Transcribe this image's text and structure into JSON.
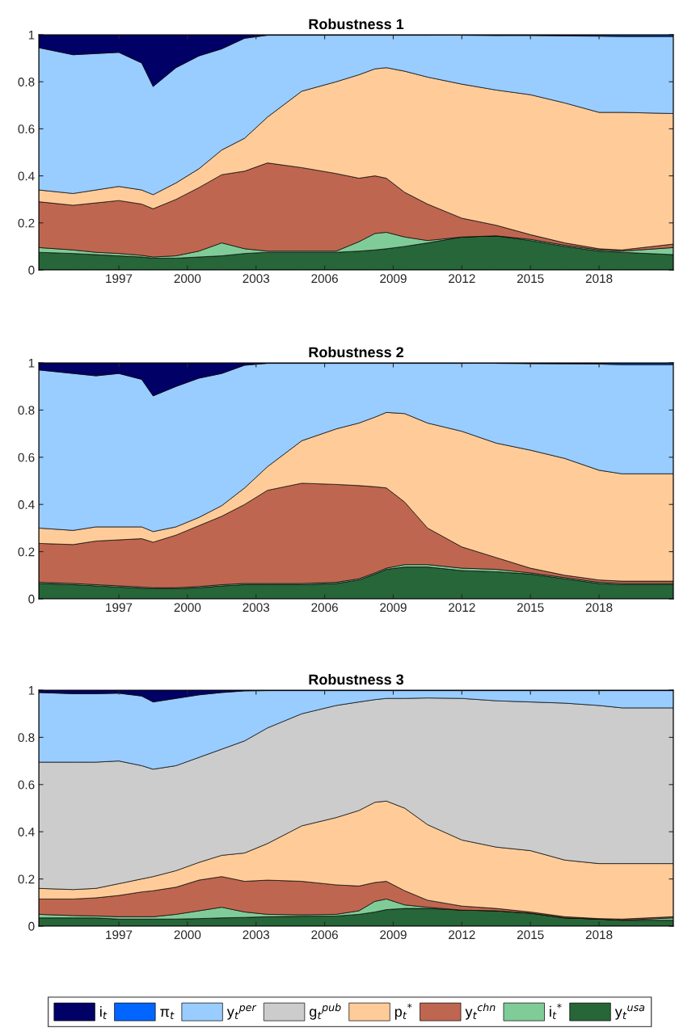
{
  "chart_data": [
    {
      "type": "area",
      "stacked": true,
      "title": "Robustness 1",
      "legend": false,
      "grid": false,
      "x": [
        1993.5,
        1995,
        1996,
        1997,
        1998,
        1998.5,
        1999.5,
        2000.5,
        2001.5,
        2002.5,
        2003.5,
        2005,
        2006.5,
        2007.5,
        2008.2,
        2008.7,
        2009.5,
        2010.5,
        2012,
        2013.5,
        2015,
        2016.5,
        2018,
        2019,
        2021.25
      ],
      "xlim": [
        1993.5,
        2021.25
      ],
      "xticks": [
        1997,
        2000,
        2003,
        2006,
        2009,
        2012,
        2015,
        2018
      ],
      "ylim": [
        0,
        1
      ],
      "yticks": [
        0,
        0.2,
        0.4,
        0.6,
        0.8,
        1
      ],
      "series": [
        {
          "color": "#266638",
          "values": [
            0.075,
            0.07,
            0.065,
            0.06,
            0.055,
            0.05,
            0.05,
            0.055,
            0.06,
            0.07,
            0.075,
            0.075,
            0.075,
            0.08,
            0.085,
            0.09,
            0.1,
            0.115,
            0.14,
            0.145,
            0.125,
            0.1,
            0.08,
            0.075,
            0.065
          ]
        },
        {
          "color": "#80cc99",
          "values": [
            0.02,
            0.015,
            0.01,
            0.01,
            0.007,
            0.005,
            0.01,
            0.025,
            0.055,
            0.02,
            0.005,
            0.005,
            0.005,
            0.04,
            0.07,
            0.07,
            0.04,
            0.01,
            0,
            0,
            0.005,
            0.005,
            0.005,
            0.005,
            0.03
          ]
        },
        {
          "color": "#bf6650",
          "values": [
            0.195,
            0.19,
            0.21,
            0.225,
            0.218,
            0.205,
            0.24,
            0.27,
            0.29,
            0.33,
            0.375,
            0.355,
            0.33,
            0.27,
            0.245,
            0.23,
            0.19,
            0.155,
            0.08,
            0.045,
            0.02,
            0.01,
            0.005,
            0.005,
            0.015
          ]
        },
        {
          "color": "#ffcc99",
          "values": [
            0.05,
            0.05,
            0.055,
            0.06,
            0.06,
            0.06,
            0.07,
            0.08,
            0.105,
            0.14,
            0.195,
            0.325,
            0.39,
            0.44,
            0.455,
            0.47,
            0.515,
            0.54,
            0.57,
            0.575,
            0.595,
            0.595,
            0.58,
            0.585,
            0.555
          ]
        },
        {
          "color": "#99ccff",
          "values": [
            0.605,
            0.59,
            0.58,
            0.57,
            0.54,
            0.46,
            0.49,
            0.48,
            0.43,
            0.425,
            0.348,
            0.238,
            0.198,
            0.168,
            0.143,
            0.138,
            0.153,
            0.178,
            0.208,
            0.232,
            0.252,
            0.285,
            0.324,
            0.322,
            0.327
          ]
        },
        {
          "color": "#0066ff",
          "values": [
            null,
            null,
            null,
            null,
            null,
            null,
            null,
            null,
            null,
            null,
            null,
            null,
            null,
            null,
            null,
            null,
            null,
            null,
            0.001,
            0.001,
            0.002,
            0.003,
            0.004,
            0.006,
            0.006
          ]
        },
        {
          "color": "#000066",
          "values": [
            0.055,
            0.085,
            0.08,
            0.075,
            0.12,
            0.22,
            0.14,
            0.09,
            0.06,
            0.015,
            0.002,
            0.002,
            0.002,
            0.002,
            0.002,
            0.002,
            0.002,
            0.002,
            0.002,
            0.002,
            0.001,
            0.002,
            0.002,
            0.002,
            0.002
          ]
        }
      ]
    },
    {
      "type": "area",
      "stacked": true,
      "title": "Robustness 2",
      "legend": false,
      "grid": false,
      "x": [
        1993.5,
        1995,
        1996,
        1997,
        1998,
        1998.5,
        1999.5,
        2000.5,
        2001.5,
        2002.5,
        2003.5,
        2005,
        2006.5,
        2007.5,
        2008.2,
        2008.7,
        2009.5,
        2010.5,
        2012,
        2013.5,
        2015,
        2016.5,
        2018,
        2019,
        2021.25
      ],
      "xlim": [
        1993.5,
        2021.25
      ],
      "xticks": [
        1997,
        2000,
        2003,
        2006,
        2009,
        2012,
        2015,
        2018
      ],
      "ylim": [
        0,
        1
      ],
      "yticks": [
        0,
        0.2,
        0.4,
        0.6,
        0.8,
        1
      ],
      "series": [
        {
          "color": "#266638",
          "values": [
            0.065,
            0.06,
            0.055,
            0.05,
            0.045,
            0.043,
            0.043,
            0.047,
            0.055,
            0.06,
            0.06,
            0.06,
            0.065,
            0.08,
            0.105,
            0.125,
            0.135,
            0.135,
            0.12,
            0.115,
            0.105,
            0.085,
            0.065,
            0.06,
            0.06
          ]
        },
        {
          "color": "#80cc99",
          "values": [
            0.005,
            0.005,
            0.005,
            0.005,
            0.005,
            0.004,
            0.004,
            0.005,
            0.005,
            0.005,
            0.005,
            0.005,
            0.005,
            0.005,
            0.005,
            0.005,
            0.01,
            0.01,
            0.01,
            0.01,
            0.005,
            0.005,
            0.005,
            0.005,
            0.005
          ]
        },
        {
          "color": "#bf6650",
          "values": [
            0.165,
            0.165,
            0.185,
            0.195,
            0.205,
            0.193,
            0.223,
            0.258,
            0.29,
            0.335,
            0.395,
            0.425,
            0.415,
            0.395,
            0.365,
            0.34,
            0.265,
            0.155,
            0.09,
            0.05,
            0.02,
            0.01,
            0.01,
            0.01,
            0.01
          ]
        },
        {
          "color": "#ffcc99",
          "values": [
            0.065,
            0.06,
            0.06,
            0.055,
            0.05,
            0.045,
            0.035,
            0.035,
            0.045,
            0.07,
            0.1,
            0.18,
            0.235,
            0.265,
            0.295,
            0.32,
            0.375,
            0.445,
            0.49,
            0.485,
            0.5,
            0.495,
            0.465,
            0.455,
            0.455
          ]
        },
        {
          "color": "#99ccff",
          "values": [
            0.67,
            0.665,
            0.64,
            0.65,
            0.625,
            0.575,
            0.595,
            0.59,
            0.56,
            0.52,
            0.438,
            0.328,
            0.278,
            0.253,
            0.228,
            0.208,
            0.213,
            0.253,
            0.288,
            0.338,
            0.367,
            0.401,
            0.45,
            0.462,
            0.462
          ]
        },
        {
          "color": "#0066ff",
          "values": [
            null,
            null,
            null,
            null,
            null,
            null,
            null,
            null,
            null,
            null,
            null,
            null,
            null,
            null,
            null,
            null,
            null,
            null,
            null,
            0.001,
            0.001,
            0.002,
            0.003,
            0.006,
            0.006
          ]
        },
        {
          "color": "#000066",
          "values": [
            0.03,
            0.045,
            0.055,
            0.045,
            0.07,
            0.14,
            0.1,
            0.065,
            0.045,
            0.01,
            0.002,
            0.002,
            0.002,
            0.002,
            0.002,
            0.002,
            0.002,
            0.002,
            0.002,
            0.002,
            0.002,
            0.002,
            0.002,
            0.002,
            0.002
          ]
        }
      ]
    },
    {
      "type": "area",
      "stacked": true,
      "title": "Robustness 3",
      "legend": "bottom",
      "grid": false,
      "x": [
        1993.5,
        1995,
        1996,
        1997,
        1998,
        1998.5,
        1999.5,
        2000.5,
        2001.5,
        2002.5,
        2003.5,
        2005,
        2006.5,
        2007.5,
        2008.2,
        2008.7,
        2009.5,
        2010.5,
        2012,
        2013.5,
        2015,
        2016.5,
        2018,
        2019,
        2021.25
      ],
      "xlim": [
        1993.5,
        2021.25
      ],
      "xticks": [
        1997,
        2000,
        2003,
        2006,
        2009,
        2012,
        2015,
        2018
      ],
      "ylim": [
        0,
        1
      ],
      "yticks": [
        0,
        0.2,
        0.4,
        0.6,
        0.8,
        1
      ],
      "series": [
        {
          "name": "y$_{t}$$^{usa}$",
          "color": "#266638",
          "values": [
            0.035,
            0.035,
            0.035,
            0.03,
            0.03,
            0.03,
            0.03,
            0.032,
            0.035,
            0.037,
            0.04,
            0.042,
            0.043,
            0.05,
            0.06,
            0.07,
            0.075,
            0.075,
            0.068,
            0.065,
            0.055,
            0.035,
            0.03,
            0.025,
            0.025
          ]
        },
        {
          "name": "i$_{t}$$^{*}$",
          "color": "#80cc99",
          "values": [
            0.015,
            0.01,
            0.008,
            0.01,
            0.01,
            0.01,
            0.02,
            0.033,
            0.045,
            0.023,
            0.01,
            0.006,
            0.007,
            0.015,
            0.045,
            0.045,
            0.015,
            0.005,
            0,
            0,
            0,
            0,
            0,
            0,
            0.01
          ]
        },
        {
          "name": "y$_{t}$$^{chn}$",
          "color": "#bf6650",
          "values": [
            0.065,
            0.07,
            0.077,
            0.09,
            0.105,
            0.11,
            0.115,
            0.13,
            0.13,
            0.13,
            0.145,
            0.142,
            0.125,
            0.105,
            0.08,
            0.075,
            0.06,
            0.03,
            0.017,
            0.01,
            0.005,
            0.005,
            0.002,
            0.005,
            0.005
          ]
        },
        {
          "name": "p$_{t}$$^{*}$",
          "color": "#ffcc99",
          "values": [
            0.045,
            0.04,
            0.04,
            0.05,
            0.055,
            0.06,
            0.07,
            0.075,
            0.09,
            0.12,
            0.155,
            0.235,
            0.285,
            0.32,
            0.34,
            0.34,
            0.35,
            0.32,
            0.28,
            0.26,
            0.26,
            0.24,
            0.233,
            0.235,
            0.225
          ]
        },
        {
          "name": "g$_{t}$$^{pub}$",
          "color": "#cccccc",
          "values": [
            0.535,
            0.54,
            0.535,
            0.52,
            0.48,
            0.455,
            0.445,
            0.445,
            0.45,
            0.475,
            0.49,
            0.475,
            0.475,
            0.46,
            0.435,
            0.435,
            0.465,
            0.537,
            0.6,
            0.62,
            0.63,
            0.665,
            0.67,
            0.66,
            0.66
          ]
        },
        {
          "name": "y$_{t}$$^{per}$",
          "color": "#99ccff",
          "values": [
            0.295,
            0.29,
            0.29,
            0.287,
            0.295,
            0.285,
            0.285,
            0.265,
            0.24,
            0.212,
            0.158,
            0.098,
            0.063,
            0.048,
            0.038,
            0.033,
            0.033,
            0.031,
            0.033,
            0.043,
            0.048,
            0.053,
            0.063,
            0.073,
            0.073
          ]
        },
        {
          "name": "π$_{t}$",
          "color": "#0066ff",
          "values": [
            null,
            null,
            null,
            null,
            null,
            null,
            null,
            null,
            null,
            null,
            null,
            null,
            null,
            null,
            null,
            null,
            null,
            null,
            null,
            null,
            null,
            null,
            null,
            null,
            null
          ]
        },
        {
          "name": "i$_{t}$",
          "color": "#000066",
          "values": [
            0.01,
            0.015,
            0.015,
            0.013,
            0.025,
            0.05,
            0.035,
            0.02,
            0.01,
            0.003,
            0.002,
            0.002,
            0.002,
            0.002,
            0.002,
            0.002,
            0.002,
            0.002,
            0.002,
            0.002,
            0.002,
            0.002,
            0.002,
            0.002,
            0.002
          ]
        }
      ]
    }
  ]
}
